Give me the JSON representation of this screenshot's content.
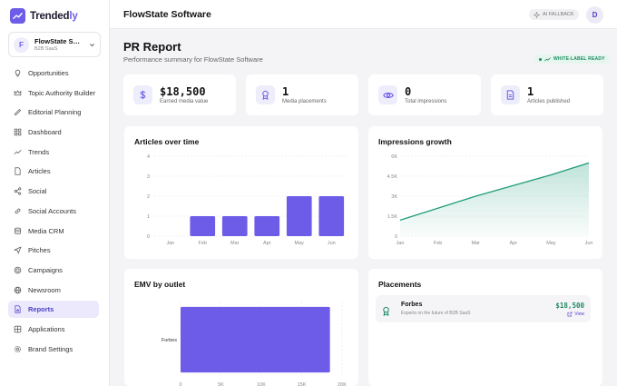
{
  "brand": {
    "name_main": "Trended",
    "name_accent": "ly"
  },
  "org": {
    "initial": "F",
    "name": "FlowState Software",
    "subtitle": "B2B SaaS"
  },
  "nav": [
    {
      "label": "Opportunities",
      "icon": "lightbulb-icon"
    },
    {
      "label": "Topic Authority Builder",
      "icon": "crown-icon"
    },
    {
      "label": "Editorial Planning",
      "icon": "pen-icon"
    },
    {
      "label": "Dashboard",
      "icon": "grid-icon"
    },
    {
      "label": "Trends",
      "icon": "trending-icon"
    },
    {
      "label": "Articles",
      "icon": "document-icon"
    },
    {
      "label": "Social",
      "icon": "share-icon"
    },
    {
      "label": "Social Accounts",
      "icon": "link-icon"
    },
    {
      "label": "Media CRM",
      "icon": "database-icon"
    },
    {
      "label": "Pitches",
      "icon": "send-icon"
    },
    {
      "label": "Campaigns",
      "icon": "target-icon"
    },
    {
      "label": "Newsroom",
      "icon": "globe-icon"
    },
    {
      "label": "Reports",
      "icon": "file-chart-icon",
      "active": true
    },
    {
      "label": "Applications",
      "icon": "apps-icon"
    },
    {
      "label": "Brand Settings",
      "icon": "gear-icon"
    }
  ],
  "topbar": {
    "title": "FlowState Software",
    "ai_badge": "AI FALLBACK",
    "user_initial": "D"
  },
  "page": {
    "title": "PR Report",
    "subtitle": "Performance summary for FlowState Software",
    "badge": "WHITE-LABEL READY"
  },
  "stats": [
    {
      "value": "$18,500",
      "label": "Earned media value",
      "icon": "dollar-icon"
    },
    {
      "value": "1",
      "label": "Media placements",
      "icon": "award-icon"
    },
    {
      "value": "0",
      "label": "Total impressions",
      "icon": "eye-icon"
    },
    {
      "value": "1",
      "label": "Articles published",
      "icon": "file-text-icon"
    }
  ],
  "colors": {
    "accent": "#6d5ce8",
    "green": "#1c8a5e",
    "area_line": "#1f9d7a"
  },
  "chart_data": [
    {
      "type": "bar",
      "title": "Articles over time",
      "categories": [
        "Jan",
        "Feb",
        "Mar",
        "Apr",
        "May",
        "Jun"
      ],
      "values": [
        0,
        1,
        1,
        1,
        2,
        2
      ],
      "ylim": [
        0,
        4
      ],
      "yticks": [
        "0",
        "1",
        "2",
        "3",
        "4"
      ],
      "grid": true
    },
    {
      "type": "area",
      "title": "Impressions growth",
      "categories": [
        "Jan",
        "Feb",
        "Mar",
        "Apr",
        "May",
        "Jun"
      ],
      "values": [
        1200,
        2100,
        3000,
        3800,
        4600,
        5500
      ],
      "ylim": [
        0,
        6000
      ],
      "yticks": [
        "0",
        "1.5K",
        "3K",
        "4.5K",
        "6K"
      ],
      "grid": true
    },
    {
      "type": "bar",
      "orientation": "horizontal",
      "title": "EMV by outlet",
      "categories": [
        "Forbes"
      ],
      "values": [
        18500
      ],
      "xlim": [
        0,
        20000
      ],
      "xticks": [
        "0",
        "5K",
        "10K",
        "15K",
        "20K"
      ],
      "grid": true
    }
  ],
  "placements": {
    "title": "Placements",
    "items": [
      {
        "outlet": "Forbes",
        "description": "Experts on the future of B2B SaaS",
        "value": "$18,500",
        "action": "View"
      }
    ]
  }
}
